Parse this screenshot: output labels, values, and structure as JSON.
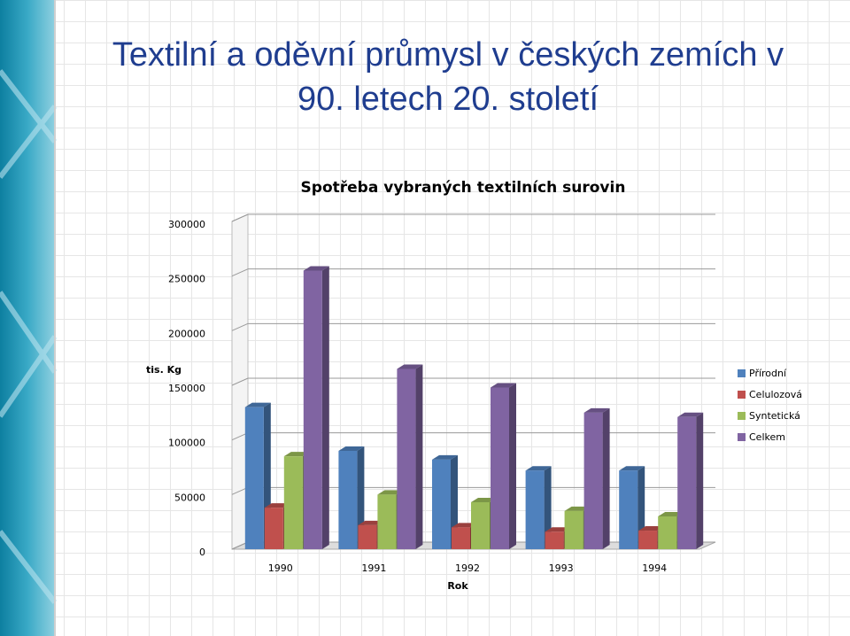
{
  "slide": {
    "title_lines": [
      "Textilní a oděvní průmysl v českých zemích v",
      "90. letech 20. století"
    ]
  },
  "chart_data": {
    "type": "bar3d",
    "title": "Spotřeba vybraných textilních surovin",
    "x_label": "Rok",
    "y_label": "tis. Kg",
    "categories": [
      "1990",
      "1991",
      "1992",
      "1993",
      "1994"
    ],
    "series": [
      {
        "name": "Přírodní",
        "color": "#4f81bd",
        "values": [
          130000,
          90000,
          82000,
          72000,
          72000
        ]
      },
      {
        "name": "Celulozová",
        "color": "#c0504d",
        "values": [
          38000,
          22000,
          20000,
          16000,
          17000
        ]
      },
      {
        "name": "Syntetická",
        "color": "#9bbb59",
        "values": [
          85000,
          50000,
          43000,
          35000,
          30000
        ]
      },
      {
        "name": "Celkem",
        "color": "#8064a2",
        "values": [
          255000,
          165000,
          148000,
          125000,
          121000
        ]
      }
    ],
    "ylim": [
      0,
      300000
    ],
    "yticks": [
      0,
      50000,
      100000,
      150000,
      200000,
      250000,
      300000
    ],
    "grid": true,
    "legend": "right"
  }
}
